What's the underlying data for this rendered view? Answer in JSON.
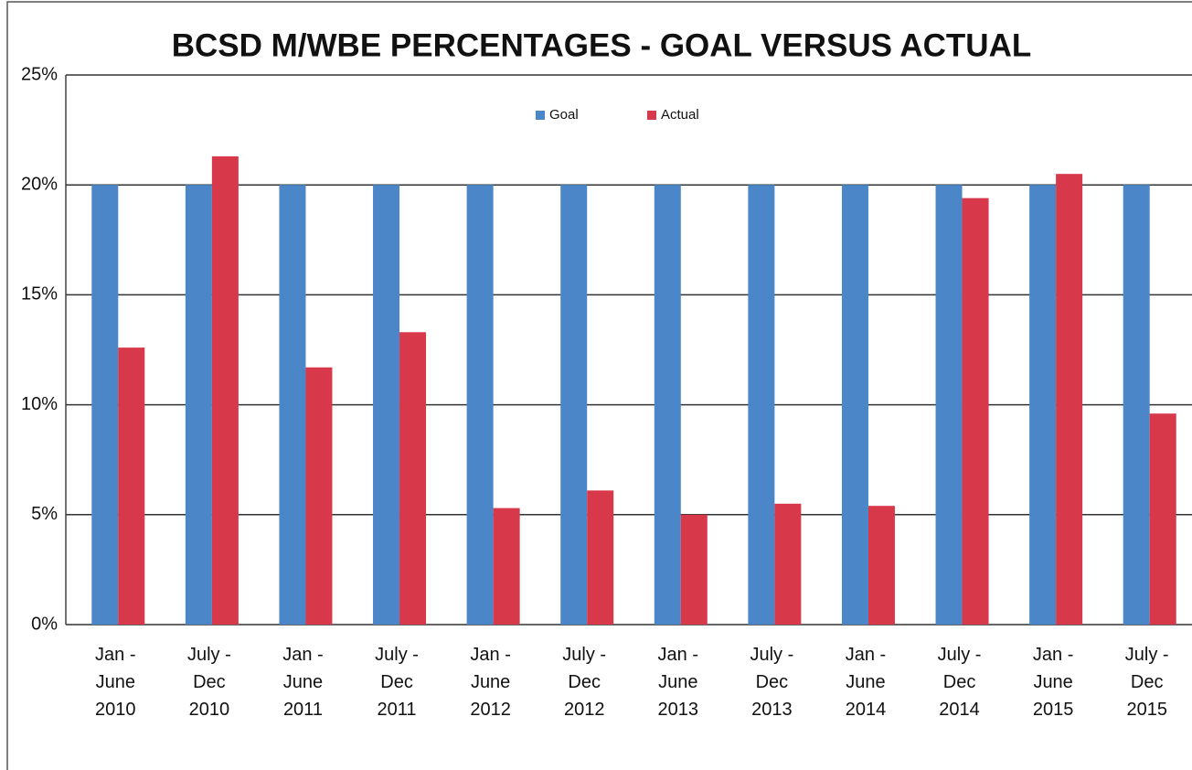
{
  "chart_data": {
    "type": "bar",
    "title": "BCSD M/WBE PERCENTAGES - GOAL VERSUS ACTUAL",
    "categories": [
      "Jan -\nJune\n2010",
      "July -\nDec\n2010",
      "Jan -\nJune\n2011",
      "July -\nDec\n2011",
      "Jan -\nJune\n2012",
      "July -\nDec\n2012",
      "Jan -\nJune\n2013",
      "July -\nDec\n2013",
      "Jan -\nJune\n2014",
      "July -\nDec\n2014",
      "Jan -\nJune\n2015",
      "July -\nDec\n2015"
    ],
    "series": [
      {
        "name": "Goal",
        "color": "#4a86c8",
        "values": [
          20,
          20,
          20,
          20,
          20,
          20,
          20,
          20,
          20,
          20,
          20,
          20
        ]
      },
      {
        "name": "Actual",
        "color": "#d8394a",
        "values": [
          12.6,
          21.3,
          11.7,
          13.3,
          5.3,
          6.1,
          5.0,
          5.5,
          5.4,
          19.4,
          20.5,
          9.6
        ]
      }
    ],
    "ylim": [
      0,
      25
    ],
    "yticks": [
      {
        "value": 0,
        "label": "0%"
      },
      {
        "value": 5,
        "label": "5%"
      },
      {
        "value": 10,
        "label": "10%"
      },
      {
        "value": 15,
        "label": "15%"
      },
      {
        "value": 20,
        "label": "20%"
      },
      {
        "value": 25,
        "label": "25%"
      }
    ],
    "grid": true,
    "legend": "top"
  }
}
